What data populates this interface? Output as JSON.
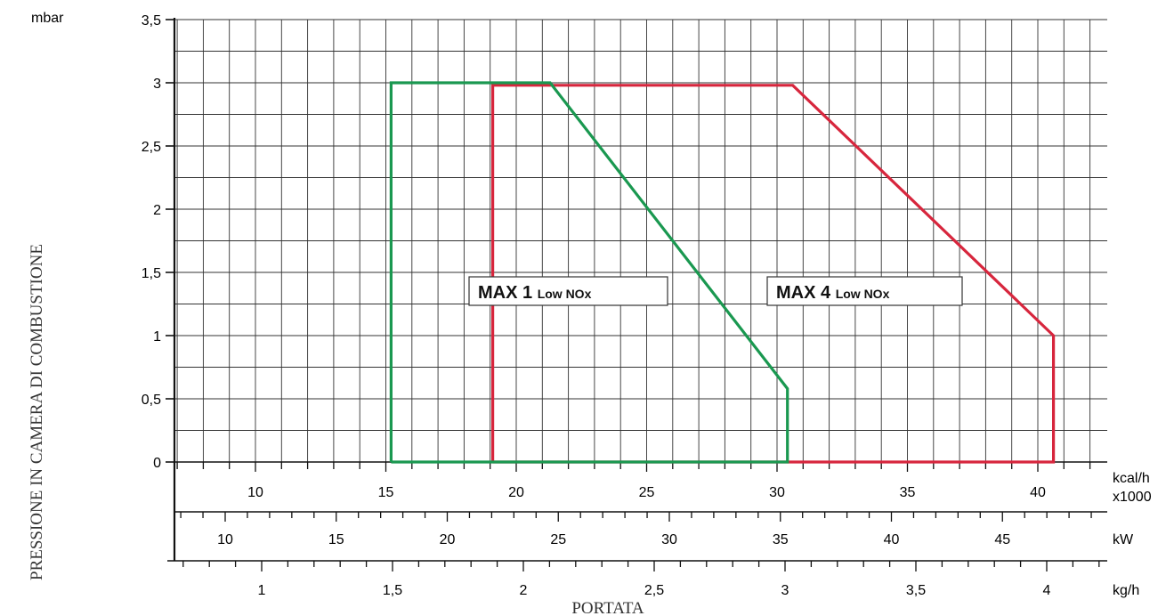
{
  "chart_data": {
    "type": "area",
    "y_unit": "mbar",
    "ylabel": "PRESSIONE IN CAMERA DI COMBUSTIONE",
    "xlabel": "PORTATA",
    "ylim": [
      0,
      3.5
    ],
    "y_ticks": [
      "0",
      "0,5",
      "1",
      "1,5",
      "2",
      "2,5",
      "3",
      "3,5"
    ],
    "x_axes": [
      {
        "unit": "kcal/h",
        "unit2": "x1000",
        "ticks": [
          "10",
          "15",
          "20",
          "25",
          "30",
          "35",
          "40"
        ]
      },
      {
        "unit": "kW",
        "ticks": [
          "10",
          "15",
          "20",
          "25",
          "30",
          "35",
          "40",
          "45"
        ]
      },
      {
        "unit": "kg/h",
        "ticks": [
          "1",
          "1,5",
          "2",
          "2,5",
          "3",
          "3,5",
          "4"
        ]
      }
    ],
    "x_units": "kcal/h x1000",
    "grid": true,
    "series": [
      {
        "name": "MAX 1 Low NOx",
        "label_main": "MAX 1",
        "label_sub": "Low NOx",
        "color": "#1a9850",
        "points": [
          [
            15.2,
            0
          ],
          [
            15.2,
            3.0
          ],
          [
            21.3,
            3.0
          ],
          [
            30.4,
            0.58
          ],
          [
            30.4,
            0
          ],
          [
            15.2,
            0
          ]
        ]
      },
      {
        "name": "MAX 4 Low NOx",
        "label_main": "MAX 4",
        "label_sub": "Low NOx",
        "color": "#d7263d",
        "points": [
          [
            19.1,
            0
          ],
          [
            19.1,
            2.98
          ],
          [
            30.6,
            2.98
          ],
          [
            40.6,
            1.0
          ],
          [
            40.6,
            0
          ],
          [
            19.1,
            0
          ]
        ]
      }
    ]
  }
}
